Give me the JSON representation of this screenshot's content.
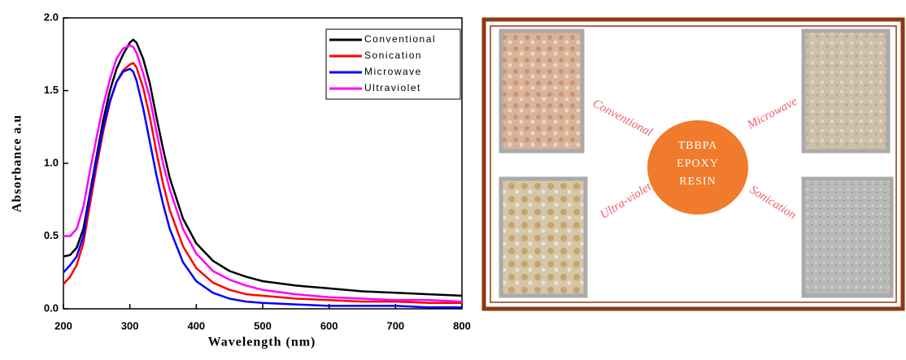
{
  "chart_data": {
    "type": "line",
    "xlabel": "Wavelength (nm)",
    "ylabel": "Absorbance a.u",
    "x": [
      200,
      210,
      220,
      230,
      240,
      250,
      260,
      270,
      280,
      290,
      300,
      305,
      310,
      320,
      330,
      340,
      350,
      360,
      380,
      400,
      425,
      450,
      475,
      500,
      550,
      600,
      650,
      700,
      750,
      800
    ],
    "series": [
      {
        "name": "Conventional",
        "color": "#000000",
        "values": [
          0.36,
          0.37,
          0.42,
          0.55,
          0.8,
          1.05,
          1.3,
          1.5,
          1.65,
          1.75,
          1.83,
          1.85,
          1.83,
          1.72,
          1.55,
          1.32,
          1.1,
          0.9,
          0.62,
          0.45,
          0.33,
          0.26,
          0.22,
          0.19,
          0.16,
          0.14,
          0.12,
          0.11,
          0.1,
          0.09
        ]
      },
      {
        "name": "Sonication",
        "color": "#ff0000",
        "values": [
          0.17,
          0.22,
          0.3,
          0.45,
          0.72,
          0.98,
          1.22,
          1.42,
          1.56,
          1.64,
          1.68,
          1.69,
          1.66,
          1.52,
          1.32,
          1.08,
          0.86,
          0.68,
          0.43,
          0.28,
          0.18,
          0.13,
          0.1,
          0.09,
          0.07,
          0.06,
          0.05,
          0.05,
          0.04,
          0.04
        ]
      },
      {
        "name": "Microwave",
        "color": "#0000ff",
        "values": [
          0.25,
          0.3,
          0.36,
          0.5,
          0.78,
          1.02,
          1.25,
          1.43,
          1.56,
          1.63,
          1.65,
          1.63,
          1.57,
          1.38,
          1.15,
          0.92,
          0.72,
          0.55,
          0.32,
          0.19,
          0.11,
          0.07,
          0.05,
          0.04,
          0.03,
          0.02,
          0.02,
          0.02,
          0.01,
          0.01
        ]
      },
      {
        "name": "Ultraviolet",
        "color": "#ff00ff",
        "values": [
          0.5,
          0.5,
          0.55,
          0.7,
          0.95,
          1.18,
          1.4,
          1.58,
          1.72,
          1.79,
          1.81,
          1.8,
          1.76,
          1.62,
          1.45,
          1.22,
          1.0,
          0.82,
          0.55,
          0.38,
          0.26,
          0.2,
          0.16,
          0.13,
          0.1,
          0.08,
          0.07,
          0.06,
          0.06,
          0.05
        ]
      }
    ],
    "xlim": [
      200,
      800
    ],
    "xticks": [
      200,
      300,
      400,
      500,
      600,
      700,
      800
    ],
    "ylim": [
      0,
      2
    ],
    "yticks": [
      {
        "value": 0,
        "label": "0.0"
      },
      0.5,
      {
        "value": 1,
        "label": "1.0"
      },
      1.5,
      {
        "value": 2,
        "label": "2.0"
      }
    ],
    "legend": "upper right",
    "grid": false
  },
  "diagram": {
    "center_label": [
      "TBBPA",
      "EPOXY",
      "RESIN"
    ],
    "methods": [
      "Conventional",
      "Microwave",
      "Ultra-violet",
      "Sonication"
    ]
  }
}
